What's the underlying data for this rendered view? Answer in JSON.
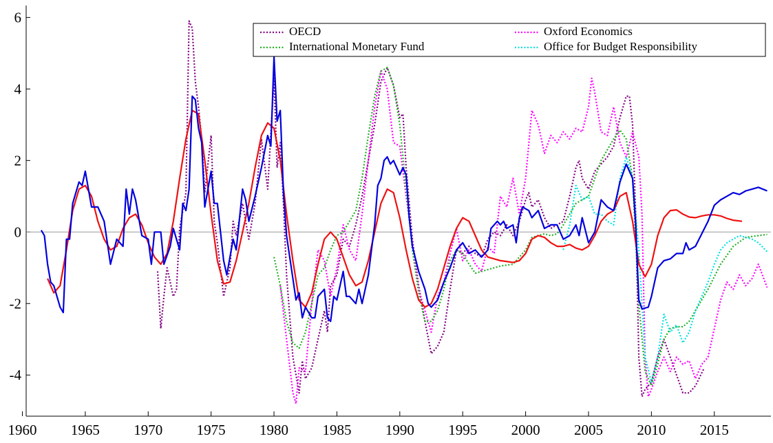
{
  "chart_data": {
    "type": "line",
    "xlim": [
      1960.3,
      2019.5
    ],
    "ylim": [
      -5.15,
      6.2
    ],
    "xticks": [
      1960,
      1965,
      1970,
      1975,
      1980,
      1985,
      1990,
      1995,
      2000,
      2005,
      2010,
      2015
    ],
    "yticks": [
      -4,
      -2,
      0,
      2,
      4,
      6
    ],
    "zero_line": true,
    "legend": "top-right",
    "series": [
      {
        "name": "OECD",
        "color": "#800080",
        "style": "dotted",
        "x": [
          1970.75,
          1971,
          1971.25,
          1971.5,
          1972,
          1972.25,
          1972.5,
          1973,
          1973.25,
          1973.5,
          1973.75,
          1974,
          1974.25,
          1974.5,
          1975,
          1975.25,
          1975.5,
          1976,
          1976.5,
          1976.75,
          1977,
          1977.5,
          1978,
          1978.5,
          1979,
          1979.5,
          1980,
          1980.25,
          1980.5,
          1980.75,
          1981,
          1981.5,
          1982,
          1982.25,
          1982.5,
          1983,
          1983.5,
          1984,
          1984.25,
          1984.5,
          1985,
          1985.5,
          1986,
          1986.5,
          1987,
          1987.5,
          1988,
          1988.5,
          1989,
          1989.5,
          1990,
          1990.25,
          1990.5,
          1991,
          1991.5,
          1992,
          1992.5,
          1993,
          1993.5,
          1994,
          1994.5,
          1995,
          1995.5,
          1996,
          1996.5,
          1997,
          1997.5,
          1998,
          1998.5,
          1999,
          1999.5,
          2000,
          2000.25,
          2000.5,
          2001,
          2001.5,
          2002,
          2002.5,
          2003,
          2003.5,
          2004,
          2004.25,
          2004.5,
          2005,
          2005.5,
          2006,
          2006.5,
          2007,
          2007.5,
          2008,
          2008.25,
          2008.5,
          2008.75,
          2009,
          2009.25,
          2009.5,
          2010,
          2010.5,
          2011,
          2011.5,
          2012,
          2012.5,
          2013,
          2013.5,
          2014.2
        ],
        "values": [
          -1.1,
          -2.7,
          -1.8,
          -1.0,
          -1.8,
          -1.6,
          0.1,
          1.1,
          5.9,
          5.7,
          4.2,
          3.5,
          2.6,
          1.1,
          2.7,
          0.3,
          -0.3,
          -1.8,
          -1.0,
          0.3,
          -0.1,
          0.8,
          -0.2,
          0.8,
          2.6,
          1.2,
          4.3,
          1.8,
          2.5,
          0.8,
          -1.2,
          -3.5,
          -4.5,
          -3.6,
          -4.1,
          -3.8,
          -3.0,
          -2.2,
          -2.8,
          -1.5,
          -1.2,
          -0.2,
          -0.4,
          0.2,
          1.0,
          2.0,
          3.0,
          4.2,
          4.6,
          4.1,
          3.2,
          3.3,
          1.8,
          -0.2,
          -1.5,
          -2.5,
          -3.4,
          -3.2,
          -2.8,
          -1.6,
          -0.5,
          -0.6,
          -0.4,
          -0.6,
          -0.7,
          -0.2,
          0.0,
          -0.1,
          0.2,
          -0.1,
          0.3,
          0.9,
          1.1,
          0.7,
          0.9,
          0.4,
          0.1,
          0.2,
          0.3,
          1.0,
          1.8,
          2.0,
          1.5,
          1.2,
          1.7,
          1.9,
          2.1,
          2.4,
          3.2,
          3.8,
          3.8,
          3.0,
          0.5,
          -3.5,
          -4.6,
          -4.4,
          -4.2,
          -3.5,
          -3.0,
          -3.5,
          -4.0,
          -4.5,
          -4.5,
          -4.3,
          -3.8
        ]
      },
      {
        "name": "Oxford Economics",
        "color": "#ff00ff",
        "style": "dotted",
        "x": [
          1980.5,
          1981,
          1981.5,
          1981.75,
          1982,
          1982.5,
          1983,
          1983.5,
          1984,
          1984.5,
          1985,
          1985.5,
          1986,
          1986.5,
          1987,
          1987.5,
          1988,
          1988.5,
          1989,
          1989.5,
          1990,
          1990.5,
          1991,
          1991.5,
          1992,
          1992.5,
          1993,
          1993.5,
          1994,
          1994.5,
          1995,
          1995.5,
          1996,
          1996.5,
          1997,
          1997.5,
          1998,
          1998.5,
          1999,
          1999.5,
          2000,
          2000.5,
          2001,
          2001.5,
          2002,
          2002.5,
          2003,
          2003.5,
          2004,
          2004.5,
          2005,
          2005.25,
          2005.5,
          2006,
          2006.5,
          2007,
          2007.5,
          2008,
          2008.5,
          2009,
          2009.25,
          2009.5,
          2009.75,
          2010,
          2010.5,
          2011,
          2011.5,
          2012,
          2012.5,
          2013,
          2013.5,
          2014,
          2014.5,
          2015,
          2015.5,
          2016,
          2016.5,
          2017,
          2017.5,
          2018,
          2018.5,
          2019.2
        ],
        "values": [
          -1.5,
          -3.0,
          -4.5,
          -4.8,
          -3.8,
          -3.9,
          -2.0,
          -0.5,
          -0.8,
          -1.8,
          -1.0,
          0.2,
          -0.5,
          -0.8,
          0.5,
          2.0,
          3.5,
          4.5,
          4.0,
          2.5,
          2.4,
          1.0,
          -0.3,
          -1.6,
          -2.2,
          -2.8,
          -1.8,
          -1.4,
          -0.6,
          0.1,
          -0.8,
          -0.5,
          -0.9,
          -1.1,
          -0.4,
          -0.6,
          1.0,
          0.7,
          1.5,
          0.5,
          1.5,
          3.4,
          3.0,
          2.2,
          2.7,
          2.5,
          2.8,
          2.6,
          2.9,
          2.8,
          3.5,
          4.3,
          3.9,
          2.8,
          2.7,
          3.5,
          2.5,
          2.1,
          2.8,
          2.1,
          0.5,
          -3.5,
          -4.6,
          -4.4,
          -3.9,
          -3.5,
          -3.9,
          -3.5,
          -3.7,
          -3.6,
          -4.1,
          -3.7,
          -3.5,
          -2.7,
          -1.9,
          -1.4,
          -1.6,
          -1.2,
          -1.5,
          -1.3,
          -0.9,
          -1.55
        ]
      },
      {
        "name": "International Monetary Fund",
        "color": "#22b022",
        "style": "dotted",
        "x": [
          1980,
          1980.5,
          1981,
          1981.5,
          1982,
          1982.5,
          1983,
          1983.5,
          1984,
          1984.5,
          1985,
          1985.5,
          1986,
          1986.5,
          1987,
          1987.5,
          1988,
          1988.5,
          1989,
          1989.5,
          1990,
          1990.5,
          1991,
          1991.5,
          1992,
          1992.5,
          1993,
          1993.5,
          1994,
          1994.5,
          1995,
          1995.5,
          1996,
          1997,
          1998,
          1999,
          1999.5,
          2000,
          2000.5,
          2001,
          2001.5,
          2002,
          2002.5,
          2003,
          2003.5,
          2004,
          2004.5,
          2005,
          2005.5,
          2006,
          2006.5,
          2007,
          2007.5,
          2008,
          2008.5,
          2009,
          2009.5,
          2010,
          2010.5,
          2011,
          2011.5,
          2012,
          2012.5,
          2013,
          2013.5,
          2014.5,
          2015.5,
          2016.5,
          2017.5,
          2018.5,
          2019.2
        ],
        "values": [
          -0.7,
          -1.5,
          -2.5,
          -3.1,
          -3.25,
          -2.8,
          -2.0,
          -1.2,
          -1.0,
          -0.5,
          -0.1,
          0.0,
          0.3,
          0.6,
          1.5,
          2.7,
          3.8,
          4.5,
          4.6,
          4.1,
          3.0,
          1.2,
          -0.5,
          -1.7,
          -2.5,
          -2.5,
          -2.2,
          -1.6,
          -0.8,
          -0.5,
          -0.6,
          -0.9,
          -1.15,
          -1.05,
          -0.95,
          -0.9,
          -0.7,
          -0.5,
          -0.15,
          -0.1,
          -0.05,
          -0.1,
          -0.05,
          0.2,
          0.5,
          0.8,
          0.9,
          1.0,
          1.5,
          2.0,
          2.3,
          2.6,
          2.85,
          2.6,
          1.5,
          -2.0,
          -3.9,
          -4.3,
          -3.7,
          -3.0,
          -2.7,
          -2.65,
          -2.65,
          -2.5,
          -2.2,
          -1.6,
          -0.9,
          -0.4,
          -0.15,
          -0.1,
          -0.07
        ]
      },
      {
        "name": "Office for Budget Responsibility",
        "color": "#00e0e0",
        "style": "dotted",
        "x": [
          2003,
          2003.5,
          2004,
          2004.5,
          2005,
          2005.5,
          2006,
          2006.5,
          2007,
          2007.5,
          2008,
          2008.5,
          2009,
          2009.5,
          2010,
          2010.5,
          2011,
          2011.5,
          2012,
          2012.5,
          2013,
          2013.5,
          2014,
          2014.5,
          2015,
          2015.5,
          2016,
          2017,
          2018,
          2018.5,
          2019.2
        ],
        "values": [
          -0.5,
          0.2,
          1.3,
          0.9,
          1.0,
          0.5,
          0.5,
          0.3,
          0.2,
          1.5,
          2.1,
          1.5,
          -0.5,
          -3.5,
          -4.2,
          -3.5,
          -2.3,
          -2.8,
          -2.6,
          -3.1,
          -2.8,
          -2.2,
          -1.8,
          -1.4,
          -0.9,
          -0.5,
          -0.3,
          -0.1,
          -0.2,
          -0.3,
          -0.55
        ]
      },
      {
        "color": "#ee1111",
        "style": "solid",
        "x": [
          1962,
          1962.5,
          1963,
          1963.5,
          1964,
          1964.5,
          1965,
          1965.5,
          1966,
          1966.5,
          1967,
          1967.5,
          1968,
          1968.5,
          1969,
          1969.5,
          1970,
          1970.5,
          1971,
          1971.5,
          1972,
          1972.5,
          1973,
          1973.5,
          1974,
          1974.5,
          1975,
          1975.5,
          1976,
          1976.5,
          1977,
          1977.5,
          1978,
          1978.5,
          1979,
          1979.5,
          1980,
          1980.5,
          1981,
          1981.5,
          1982,
          1982.5,
          1983,
          1983.5,
          1984,
          1984.5,
          1985,
          1985.5,
          1986,
          1986.5,
          1987,
          1987.5,
          1988,
          1988.5,
          1989,
          1989.5,
          1990,
          1990.5,
          1991,
          1991.5,
          1992,
          1992.5,
          1993,
          1993.5,
          1994,
          1994.5,
          1995,
          1995.5,
          1996,
          1996.5,
          1997,
          1998,
          1999,
          1999.5,
          2000,
          2000.5,
          2001,
          2001.5,
          2002,
          2002.5,
          2003,
          2003.5,
          2004,
          2004.5,
          2005,
          2005.5,
          2006,
          2006.5,
          2007,
          2007.5,
          2008,
          2008.5,
          2009,
          2009.5,
          2010,
          2010.5,
          2011,
          2011.5,
          2012,
          2012.5,
          2013,
          2013.5,
          2014,
          2014.5,
          2015,
          2015.5,
          2016,
          2016.5,
          2017.2
        ],
        "values": [
          -1.3,
          -1.7,
          -1.5,
          -0.5,
          0.6,
          1.2,
          1.3,
          1.0,
          0.3,
          -0.2,
          -0.5,
          -0.4,
          0.1,
          0.4,
          0.5,
          0.2,
          -0.3,
          -0.7,
          -0.9,
          -0.6,
          0.3,
          1.5,
          2.6,
          3.4,
          3.3,
          2.0,
          0.5,
          -0.8,
          -1.45,
          -1.4,
          -0.8,
          0.0,
          0.8,
          1.8,
          2.7,
          3.05,
          2.9,
          2.0,
          0.5,
          -0.8,
          -1.9,
          -2.1,
          -1.7,
          -0.9,
          -0.2,
          0.0,
          -0.2,
          -0.7,
          -1.2,
          -1.5,
          -1.4,
          -0.8,
          0.0,
          0.8,
          1.2,
          1.1,
          0.4,
          -0.5,
          -1.3,
          -1.9,
          -2.1,
          -2.0,
          -1.6,
          -1.0,
          -0.4,
          0.1,
          0.4,
          0.3,
          -0.1,
          -0.5,
          -0.7,
          -0.8,
          -0.85,
          -0.8,
          -0.6,
          -0.2,
          -0.1,
          -0.15,
          -0.3,
          -0.4,
          -0.4,
          -0.35,
          -0.45,
          -0.5,
          -0.4,
          -0.1,
          0.3,
          0.5,
          0.6,
          1.0,
          1.1,
          0.3,
          -0.9,
          -1.25,
          -0.9,
          -0.1,
          0.4,
          0.6,
          0.62,
          0.5,
          0.42,
          0.4,
          0.45,
          0.48,
          0.48,
          0.45,
          0.38,
          0.33,
          0.3
        ]
      },
      {
        "color": "#0000dd",
        "style": "solid",
        "x": [
          1961.5,
          1961.75,
          1962,
          1962.25,
          1962.5,
          1963,
          1963.25,
          1963.5,
          1963.75,
          1964,
          1964.5,
          1964.75,
          1965,
          1965.5,
          1966,
          1966.5,
          1967,
          1967.5,
          1968,
          1968.25,
          1968.5,
          1968.75,
          1969,
          1969.5,
          1970,
          1970.25,
          1970.5,
          1971,
          1971.25,
          1971.75,
          1972,
          1972.5,
          1972.75,
          1973,
          1973.25,
          1973.5,
          1973.75,
          1974,
          1974.25,
          1974.5,
          1975,
          1975.25,
          1975.5,
          1976,
          1976.25,
          1976.75,
          1977,
          1977.5,
          1977.75,
          1978,
          1978.5,
          1979,
          1979.5,
          1979.75,
          1980,
          1980.25,
          1980.5,
          1980.75,
          1981,
          1981.5,
          1981.75,
          1982,
          1982.25,
          1982.5,
          1983,
          1983.25,
          1983.5,
          1984,
          1984.25,
          1984.5,
          1984.75,
          1985,
          1985.5,
          1985.75,
          1986,
          1986.5,
          1986.75,
          1987,
          1987.5,
          1988,
          1988.25,
          1988.5,
          1988.75,
          1989,
          1989.25,
          1989.5,
          1990,
          1990.25,
          1990.5,
          1990.75,
          1991,
          1991.5,
          1992,
          1992.25,
          1992.5,
          1993,
          1993.5,
          1994,
          1994.5,
          1995,
          1995.5,
          1996,
          1996.5,
          1997,
          1997.25,
          1997.75,
          1998,
          1998.25,
          1998.5,
          1999,
          1999.25,
          1999.5,
          1999.75,
          2000.25,
          2000.5,
          2001,
          2001.5,
          2002,
          2002.5,
          2003,
          2003.5,
          2004,
          2004.25,
          2004.5,
          2005,
          2005.5,
          2006,
          2006.5,
          2007,
          2007.5,
          2008,
          2008.5,
          2008.75,
          2009,
          2009.25,
          2009.75,
          2010,
          2010.5,
          2011,
          2011.5,
          2012,
          2012.5,
          2012.75,
          2013,
          2013.5,
          2014,
          2014.5,
          2015,
          2015.5,
          2016,
          2016.5,
          2017,
          2017.5,
          2018,
          2018.5,
          2019.2
        ],
        "values": [
          0.05,
          -0.1,
          -0.9,
          -1.4,
          -1.5,
          -2.1,
          -2.25,
          -0.2,
          -0.2,
          0.8,
          1.4,
          1.3,
          1.7,
          0.7,
          0.7,
          0.3,
          -0.9,
          -0.2,
          -0.4,
          1.2,
          0.5,
          1.2,
          0.9,
          -0.1,
          -0.2,
          -0.9,
          0.0,
          0.0,
          -0.9,
          -0.4,
          0.1,
          -0.5,
          0.8,
          0.6,
          1.2,
          3.8,
          3.7,
          2.9,
          2.5,
          0.7,
          1.7,
          0.8,
          0.8,
          -0.8,
          -1.2,
          -0.2,
          -0.5,
          1.2,
          0.9,
          0.3,
          1.0,
          1.8,
          2.7,
          2.4,
          4.9,
          3.1,
          3.4,
          1.1,
          -0.1,
          -1.3,
          -1.9,
          -1.7,
          -2.4,
          -2.1,
          -2.4,
          -2.4,
          -1.8,
          -1.6,
          -2.4,
          -2.5,
          -1.8,
          -1.9,
          -1.1,
          -1.8,
          -1.8,
          -2.0,
          -1.6,
          -2.0,
          -1.2,
          0.2,
          1.3,
          1.5,
          2.0,
          2.1,
          1.9,
          2.0,
          1.6,
          1.8,
          1.6,
          0.4,
          -0.4,
          -1.1,
          -1.6,
          -2.0,
          -2.1,
          -1.9,
          -1.4,
          -1.0,
          -0.5,
          -0.3,
          -0.6,
          -0.5,
          -0.7,
          -0.5,
          0.1,
          0.3,
          0.2,
          0.3,
          0.1,
          0.2,
          -0.3,
          0.4,
          0.7,
          0.6,
          0.4,
          0.6,
          0.1,
          0.2,
          0.2,
          -0.2,
          -0.1,
          0.2,
          -0.1,
          0.4,
          -0.3,
          0.0,
          0.9,
          0.7,
          0.6,
          1.4,
          1.9,
          1.5,
          0.2,
          -1.9,
          -2.15,
          -2.1,
          -1.8,
          -1.0,
          -0.8,
          -0.75,
          -0.6,
          -0.6,
          -0.3,
          -0.5,
          -0.4,
          -0.05,
          0.3,
          0.75,
          0.9,
          1.0,
          1.1,
          1.05,
          1.15,
          1.2,
          1.25,
          1.15
        ]
      }
    ]
  }
}
